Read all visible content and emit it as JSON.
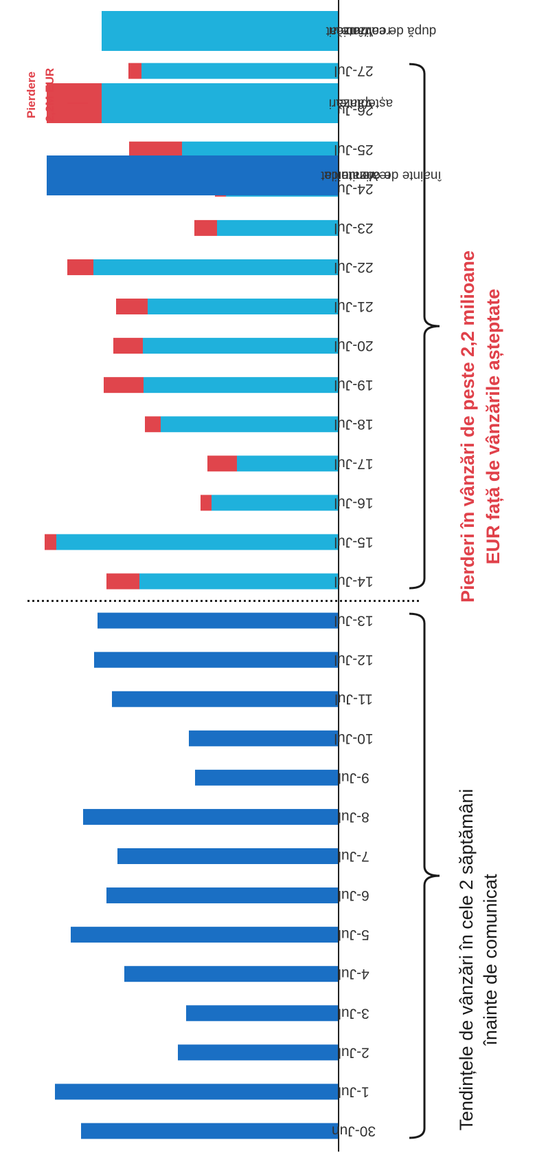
{
  "colors": {
    "pre": "#1a6fc4",
    "actual": "#1fb1dc",
    "loss": "#e0454c",
    "axis": "#222222"
  },
  "chart_data": [
    {
      "type": "bar",
      "stacked": true,
      "categories": [
        "30-Jun",
        "1-Jul",
        "2-Jul",
        "3-Jul",
        "4-Jul",
        "5-Jul",
        "6-Jul",
        "7-Jul",
        "8-Jul",
        "9-Jul",
        "10-Jul",
        "11-Jul",
        "12-Jul",
        "13-Jul",
        "14-Jul",
        "15-Jul",
        "16-Jul",
        "17-Jul",
        "18-Jul",
        "19-Jul",
        "20-Jul",
        "21-Jul",
        "22-Jul",
        "23-Jul",
        "24-Jul",
        "25-Jul",
        "26-Jul",
        "27-Jul"
      ],
      "series": [
        {
          "values": [
            375,
            413,
            234,
            222,
            312,
            390,
            338,
            322,
            372,
            209,
            218,
            330,
            356,
            351,
            0,
            0,
            0,
            0,
            0,
            0,
            0,
            0,
            0,
            0,
            0,
            0,
            0,
            0
          ]
        },
        {
          "values": [
            0,
            0,
            0,
            0,
            0,
            0,
            0,
            0,
            0,
            0,
            0,
            0,
            0,
            0,
            290,
            411,
            185,
            148,
            259,
            284,
            285,
            278,
            357,
            177,
            164,
            228,
            263,
            287
          ]
        },
        {
          "values": [
            0,
            0,
            0,
            0,
            0,
            0,
            0,
            0,
            0,
            0,
            0,
            0,
            0,
            0,
            48,
            17,
            16,
            43,
            23,
            58,
            43,
            46,
            38,
            33,
            16,
            77,
            88,
            19
          ]
        }
      ],
      "divider_after": "13-Jul",
      "annotations": {
        "pre_period": [
          "Tendințele de vânzări în cele 2 săptămâni",
          "înainte de comunicat"
        ],
        "post_period": [
          "Pierderi în vânzări de peste 2,2 milioane",
          "EUR față de vânzările așteptate"
        ]
      }
    },
    {
      "type": "bar",
      "stacked": true,
      "categories": [
        [
          "Veniturile",
          "realizate",
          "înainte de comunicat"
        ],
        [
          "Vânzări",
          "așteptate"
        ],
        [
          "Vânzări",
          "realizate",
          "după de comunicat"
        ]
      ],
      "series": [
        {
          "values": [
            425,
            0,
            0
          ]
        },
        {
          "values": [
            0,
            345,
            345
          ]
        },
        {
          "values": [
            0,
            80,
            0
          ]
        }
      ],
      "annotation": [
        "Pierdere",
        "2,2M EUR"
      ]
    }
  ]
}
